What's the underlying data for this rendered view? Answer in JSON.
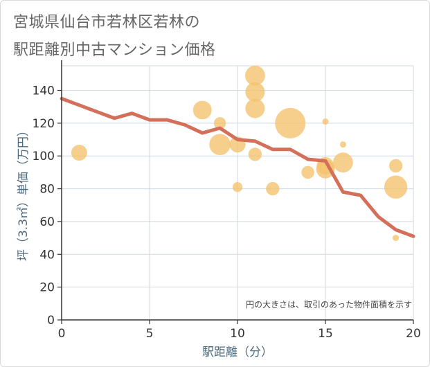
{
  "title_lines": [
    "宮城県仙台市若林区若林の",
    "駅距離別中古マンション価格"
  ],
  "chart_data": {
    "type": "scatter",
    "title": "宮城県仙台市若林区若林の駅距離別中古マンション価格",
    "xlabel": "駅距離（分）",
    "ylabel": "坪（3.3㎡）単価（万円）",
    "xlim": [
      0,
      20
    ],
    "ylim": [
      0,
      155
    ],
    "x_ticks": [
      0,
      5,
      10,
      15,
      20
    ],
    "y_ticks": [
      0,
      20,
      40,
      60,
      80,
      100,
      120,
      140
    ],
    "grid": true,
    "note": "円の大きさは、取引のあった物件面積を示す",
    "colors": {
      "bubble": "#f5c26b",
      "line": "#d4705a",
      "grid": "#cfd8e3",
      "axis": "#333333"
    },
    "bubbles": [
      {
        "x": 1,
        "y": 102,
        "size": 0.45
      },
      {
        "x": 8,
        "y": 128,
        "size": 0.55
      },
      {
        "x": 9,
        "y": 120,
        "size": 0.3
      },
      {
        "x": 9,
        "y": 107,
        "size": 0.65
      },
      {
        "x": 10,
        "y": 107,
        "size": 0.45
      },
      {
        "x": 10,
        "y": 81,
        "size": 0.22
      },
      {
        "x": 11,
        "y": 149,
        "size": 0.6
      },
      {
        "x": 11,
        "y": 139,
        "size": 0.58
      },
      {
        "x": 11,
        "y": 129,
        "size": 0.58
      },
      {
        "x": 11,
        "y": 101,
        "size": 0.35
      },
      {
        "x": 12,
        "y": 80,
        "size": 0.35
      },
      {
        "x": 13,
        "y": 120,
        "size": 1.0
      },
      {
        "x": 14,
        "y": 90,
        "size": 0.33
      },
      {
        "x": 15,
        "y": 121,
        "size": 0.08
      },
      {
        "x": 15,
        "y": 94,
        "size": 0.5
      },
      {
        "x": 15,
        "y": 92,
        "size": 0.55
      },
      {
        "x": 16,
        "y": 107,
        "size": 0.08
      },
      {
        "x": 16,
        "y": 96,
        "size": 0.6
      },
      {
        "x": 19,
        "y": 94,
        "size": 0.35
      },
      {
        "x": 19,
        "y": 81,
        "size": 0.72
      },
      {
        "x": 19,
        "y": 50,
        "size": 0.08
      }
    ],
    "series": [
      {
        "x": [
          0,
          1,
          2,
          3,
          4,
          5,
          6,
          7,
          8,
          9,
          10,
          11,
          12,
          13,
          14,
          15,
          16,
          17,
          18,
          19,
          20
        ],
        "values": [
          135,
          131,
          127,
          123,
          126,
          122,
          122,
          119,
          114,
          117,
          110,
          109,
          104,
          104,
          98,
          97,
          78,
          76,
          63,
          55,
          51
        ]
      }
    ]
  }
}
